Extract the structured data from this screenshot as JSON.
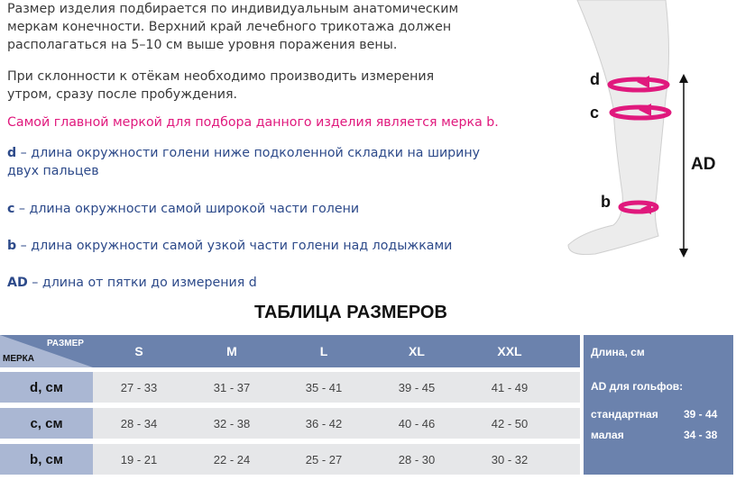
{
  "intro": {
    "p1": [
      "Размер изделия подбирается по индивидуальным анатомическим",
      "меркам конечности. Верхний край лечебного трикотажа должен",
      "располагаться на 5–10 см выше уровня поражения вены."
    ],
    "p2": [
      "При склонности к отёкам необходимо производить измерения",
      "утром, сразу после пробуждения."
    ],
    "highlight": "Самой главной меркой для подбора данного изделия является мерка b.",
    "defs": [
      {
        "key": "d",
        "text": " – длина окружности голени ниже подколенной складки на ширину"
      },
      {
        "key": "",
        "text": "двух пальцев"
      },
      {
        "key": "c",
        "text": " – длина окружности самой широкой части голени"
      },
      {
        "key": "b",
        "text": " – длина окружности самой узкой части голени над лодыжками"
      },
      {
        "key": "AD",
        "text": " – длина от пятки до измерения d"
      }
    ]
  },
  "diagram": {
    "labels": {
      "d": "d",
      "c": "c",
      "b": "b",
      "ad": "AD"
    },
    "accent": "#e0197d"
  },
  "table": {
    "title": "ТАБЛИЦА РАЗМЕРОВ",
    "corner_top": "РАЗМЕР",
    "corner_bottom": "МЕРКА",
    "sizes": [
      "S",
      "M",
      "L",
      "XL",
      "XXL"
    ],
    "rows": [
      {
        "label": "d, см",
        "values": [
          "27 - 33",
          "31 - 37",
          "35 - 41",
          "39 - 45",
          "41 - 49"
        ]
      },
      {
        "label": "c, см",
        "values": [
          "28 - 34",
          "32 - 38",
          "36 - 42",
          "40 - 46",
          "42 - 50"
        ]
      },
      {
        "label": "b, см",
        "values": [
          "19 - 21",
          "22 - 24",
          "25 - 27",
          "28 - 30",
          "30 - 32"
        ]
      }
    ]
  },
  "length_panel": {
    "title": "Длина, см",
    "subtitle": "AD для гольфов:",
    "items": [
      {
        "name": "стандартная",
        "value": "39 - 44"
      },
      {
        "name": "малая",
        "value": "34 - 38"
      }
    ]
  },
  "colors": {
    "header": "#6b82ad",
    "label_col": "#aab7d3",
    "cell": "#e6e7e9",
    "highlight": "#e0197d",
    "def_text": "#2d4a8a"
  }
}
